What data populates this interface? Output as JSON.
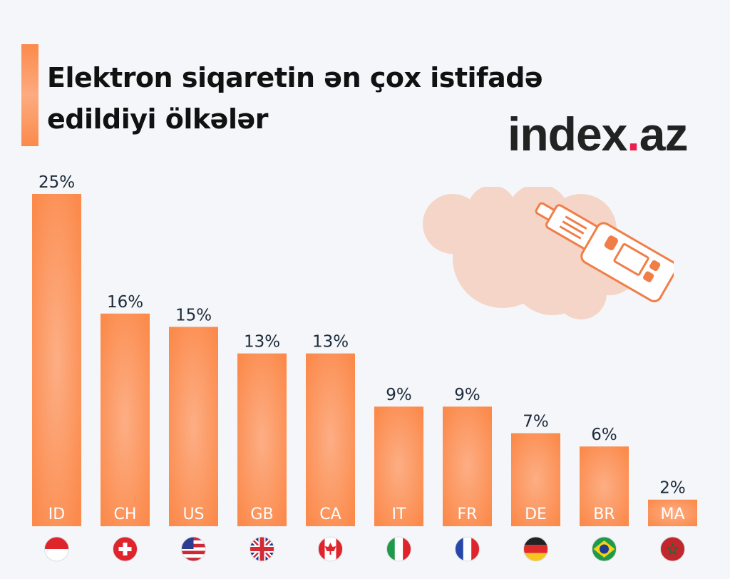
{
  "title": "Elektron siqaretin ən çox istifadə edildiyi ölkələr",
  "brand": {
    "name": "index",
    "dot": ".",
    "suffix": "az",
    "dot_color": "#e8214f"
  },
  "colors": {
    "bar": "#fb8a4b",
    "bar_highlight": "#fdae85",
    "value_text": "#1e2b3a",
    "category_text": "#ffffff",
    "background": "#f4f6f9"
  },
  "chart_data": {
    "type": "bar",
    "categories": [
      "ID",
      "CH",
      "US",
      "GB",
      "CA",
      "IT",
      "FR",
      "DE",
      "BR",
      "MA"
    ],
    "values": [
      25,
      16,
      15,
      13,
      13,
      9,
      9,
      7,
      6,
      2
    ],
    "value_labels": [
      "25%",
      "16%",
      "15%",
      "13%",
      "13%",
      "9%",
      "9%",
      "7%",
      "6%",
      "2%"
    ],
    "flags": [
      "flag-indonesia-icon",
      "flag-switzerland-icon",
      "flag-usa-icon",
      "flag-uk-icon",
      "flag-canada-icon",
      "flag-italy-icon",
      "flag-france-icon",
      "flag-germany-icon",
      "flag-brazil-icon",
      "flag-morocco-icon"
    ],
    "title": "Elektron siqaretin ən çox istifadə edildiyi ölkələr",
    "xlabel": "",
    "ylabel": "",
    "ylim": [
      0,
      25
    ],
    "grid": false,
    "legend": "none"
  }
}
